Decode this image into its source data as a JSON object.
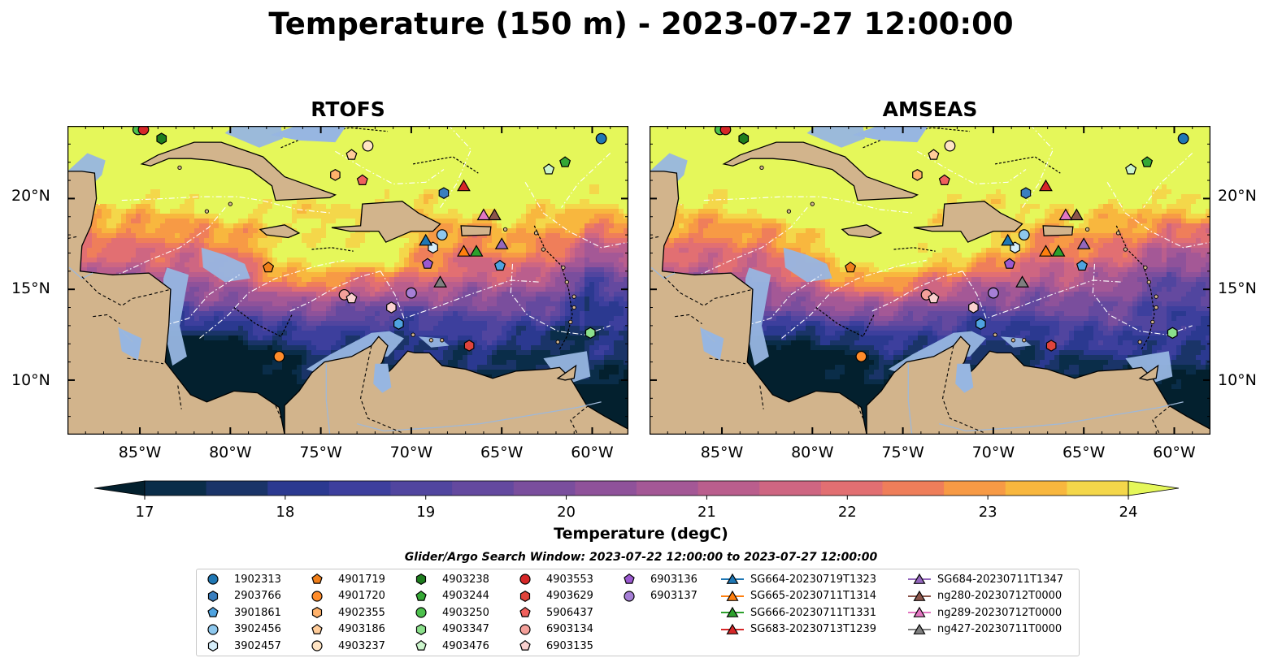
{
  "title": "Temperature (150 m) - 2023-07-27 12:00:00",
  "panels": [
    {
      "name": "rtofs",
      "title": "RTOFS"
    },
    {
      "name": "amseas",
      "title": "AMSEAS"
    }
  ],
  "map": {
    "lon_range": [
      -89,
      -58
    ],
    "lat_range": [
      7,
      24
    ],
    "lat_ticks": [
      {
        "value": 20,
        "label": "20°N"
      },
      {
        "value": 15,
        "label": "15°N"
      },
      {
        "value": 10,
        "label": "10°N"
      }
    ],
    "lon_ticks": [
      {
        "value": -85,
        "label": "85°W"
      },
      {
        "value": -80,
        "label": "80°W"
      },
      {
        "value": -75,
        "label": "75°W"
      },
      {
        "value": -70,
        "label": "70°W"
      },
      {
        "value": -65,
        "label": "65°W"
      },
      {
        "value": -60,
        "label": "60°W"
      }
    ],
    "colors": {
      "land": "#d2b48c",
      "shallow_water": "#97b6e1",
      "coast": "#000000",
      "eez": "#ffffff"
    }
  },
  "colorbar": {
    "label": "Temperature (degC)",
    "range": [
      16.5,
      24.5
    ],
    "step": 0.5,
    "ticks": [
      17,
      18,
      19,
      20,
      21,
      22,
      23,
      24
    ],
    "colors": [
      "#03202e",
      "#0a2d49",
      "#1a3468",
      "#2b3990",
      "#3d3f9d",
      "#51459f",
      "#64499f",
      "#7a4e9d",
      "#8f529a",
      "#a45896",
      "#ba5e8d",
      "#ce6682",
      "#e26f72",
      "#ef7e5a",
      "#f79a45",
      "#f8b73e",
      "#f4d74a",
      "#e5f75a"
    ],
    "extend": "both"
  },
  "search_window": "Glider/Argo Search Window: 2023-07-22 12:00:00 to 2023-07-27 12:00:00",
  "observations": [
    {
      "label": "1902313",
      "marker": "circle",
      "color": "#1f77b4",
      "lon": -59.5,
      "lat": 23.3
    },
    {
      "label": "2903766",
      "marker": "hexagon",
      "color": "#3a7fbf",
      "lon": -68.2,
      "lat": 20.3
    },
    {
      "label": "3901861",
      "marker": "pentagon",
      "color": "#4fa3e0",
      "lon": -65.1,
      "lat": 16.3
    },
    {
      "label": "3902456",
      "marker": "circle",
      "color": "#8ec8ee",
      "lon": -68.3,
      "lat": 18.0
    },
    {
      "label": "3902457",
      "marker": "hexagon",
      "color": "#d6eefa",
      "lon": -68.8,
      "lat": 17.3
    },
    {
      "label": "4901719",
      "marker": "pentagon",
      "color": "#f07f1a",
      "lon": -77.9,
      "lat": 16.2
    },
    {
      "label": "4901720",
      "marker": "circle",
      "color": "#ff8c2a",
      "lon": -77.3,
      "lat": 11.3
    },
    {
      "label": "4902355",
      "marker": "hexagon",
      "color": "#ffb26b",
      "lon": -74.2,
      "lat": 21.3
    },
    {
      "label": "4903186",
      "marker": "pentagon",
      "color": "#ffcc99",
      "lon": -73.3,
      "lat": 22.4
    },
    {
      "label": "4903237",
      "marker": "circle",
      "color": "#ffe4c4",
      "lon": -72.4,
      "lat": 22.9
    },
    {
      "label": "4903238",
      "marker": "hexagon",
      "color": "#1e7d1e",
      "lon": -83.8,
      "lat": 23.3
    },
    {
      "label": "4903244",
      "marker": "pentagon",
      "color": "#35a835",
      "lon": -61.5,
      "lat": 22.0
    },
    {
      "label": "4903250",
      "marker": "circle",
      "color": "#4cc04c",
      "lon": -85.1,
      "lat": 23.8
    },
    {
      "label": "4903347",
      "marker": "hexagon",
      "color": "#8be08b",
      "lon": -60.1,
      "lat": 12.6
    },
    {
      "label": "4903476",
      "marker": "pentagon",
      "color": "#ccf5cc",
      "lon": -62.4,
      "lat": 21.6
    },
    {
      "label": "4903553",
      "marker": "circle",
      "color": "#d62728",
      "lon": -84.8,
      "lat": 23.8
    },
    {
      "label": "4903629",
      "marker": "hexagon",
      "color": "#e0443c",
      "lon": -66.8,
      "lat": 11.9
    },
    {
      "label": "5906437",
      "marker": "pentagon",
      "color": "#f0605c",
      "lon": -72.7,
      "lat": 21.0
    },
    {
      "label": "6903134",
      "marker": "circle",
      "color": "#f4a09a",
      "lon": -73.7,
      "lat": 14.7
    },
    {
      "label": "6903135",
      "marker": "pentagon",
      "color": "#fad1cf",
      "lon": -73.3,
      "lat": 14.5
    },
    {
      "label": "6903136",
      "marker": "pentagon",
      "color": "#9b59d0",
      "lon": -69.1,
      "lat": 16.4
    },
    {
      "label": "6903137",
      "marker": "circle",
      "color": "#a67fd6",
      "lon": -70.0,
      "lat": 14.8
    },
    {
      "label": "",
      "marker": "hexagon",
      "color": "#fad1cf",
      "lon": -71.1,
      "lat": 14.0
    },
    {
      "label": "",
      "marker": "hexagon",
      "color": "#4fa3e0",
      "lon": -70.7,
      "lat": 13.1
    }
  ],
  "gliders": [
    {
      "label": "SG664-20230719T1323",
      "color": "#1f77b4",
      "lon": -69.2,
      "lat": 17.7
    },
    {
      "label": "SG665-20230711T1314",
      "color": "#ff7f0e",
      "lon": -67.1,
      "lat": 17.1
    },
    {
      "label": "SG666-20230711T1331",
      "color": "#2ca02c",
      "lon": -66.4,
      "lat": 17.1
    },
    {
      "label": "SG683-20230713T1239",
      "color": "#d62728",
      "lon": -67.1,
      "lat": 20.7
    },
    {
      "label": "SG684-20230711T1347",
      "color": "#9467bd",
      "lon": -65.0,
      "lat": 17.5
    },
    {
      "label": "ng280-20230712T0000",
      "color": "#8c564b",
      "lon": -65.4,
      "lat": 19.1
    },
    {
      "label": "ng289-20230712T0000",
      "color": "#e377c2",
      "lon": -66.0,
      "lat": 19.1
    },
    {
      "label": "ng427-20230711T0000",
      "color": "#7f7f7f",
      "lon": -68.4,
      "lat": 15.4
    }
  ]
}
